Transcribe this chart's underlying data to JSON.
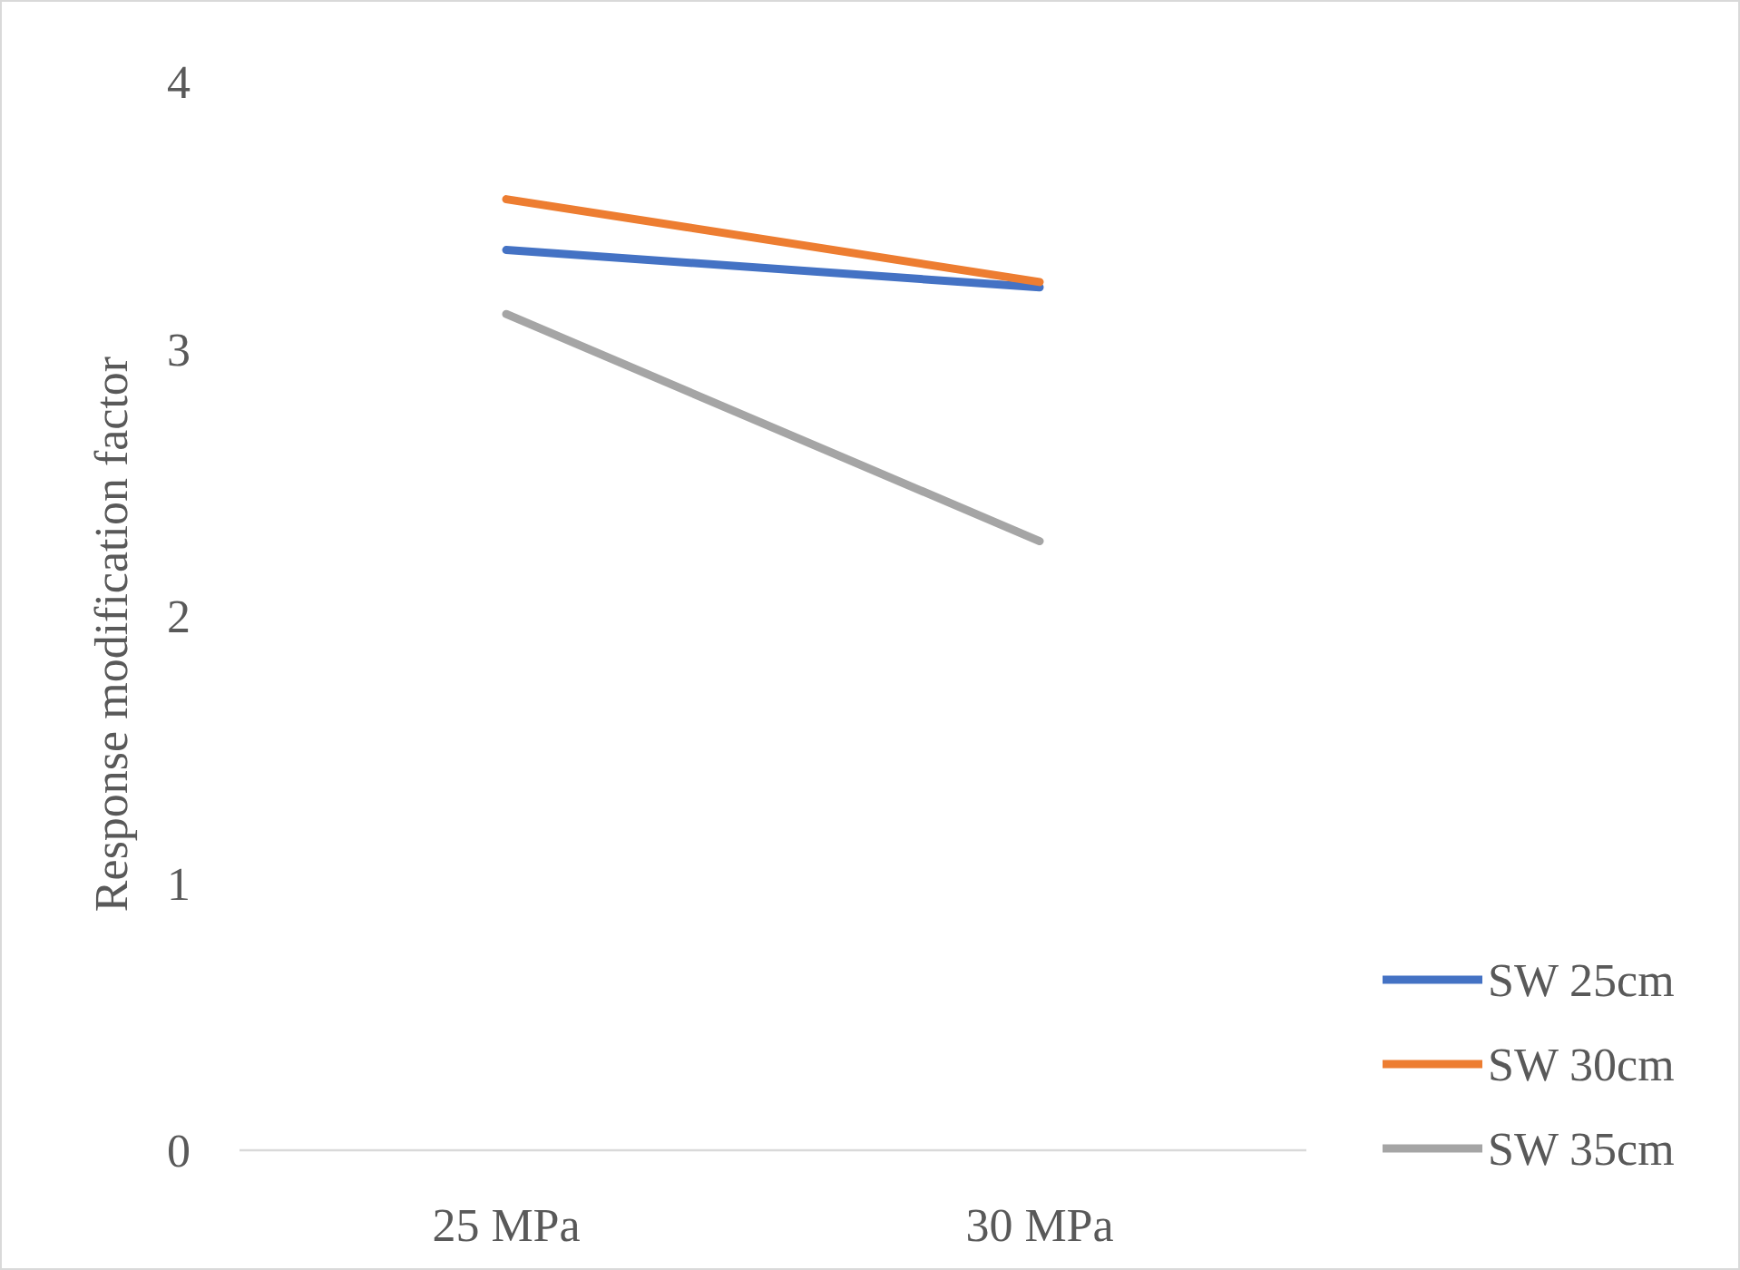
{
  "chart_data": {
    "type": "line",
    "ylabel": "Response modification factor",
    "categories": [
      "25 MPa",
      "30 MPa"
    ],
    "series": [
      {
        "name": "SW 25cm",
        "color": "#4472c4",
        "values": [
          3.37,
          3.23
        ]
      },
      {
        "name": "SW 30cm",
        "color": "#ed7d31",
        "values": [
          3.56,
          3.25
        ]
      },
      {
        "name": "SW 35cm",
        "color": "#a5a5a5",
        "values": [
          3.13,
          2.28
        ]
      }
    ],
    "ylim": [
      0,
      4
    ],
    "yticks": [
      0,
      1,
      2,
      3,
      4
    ],
    "grid": false,
    "legend": "bottom right",
    "marker": "none",
    "line_style": "solid"
  }
}
